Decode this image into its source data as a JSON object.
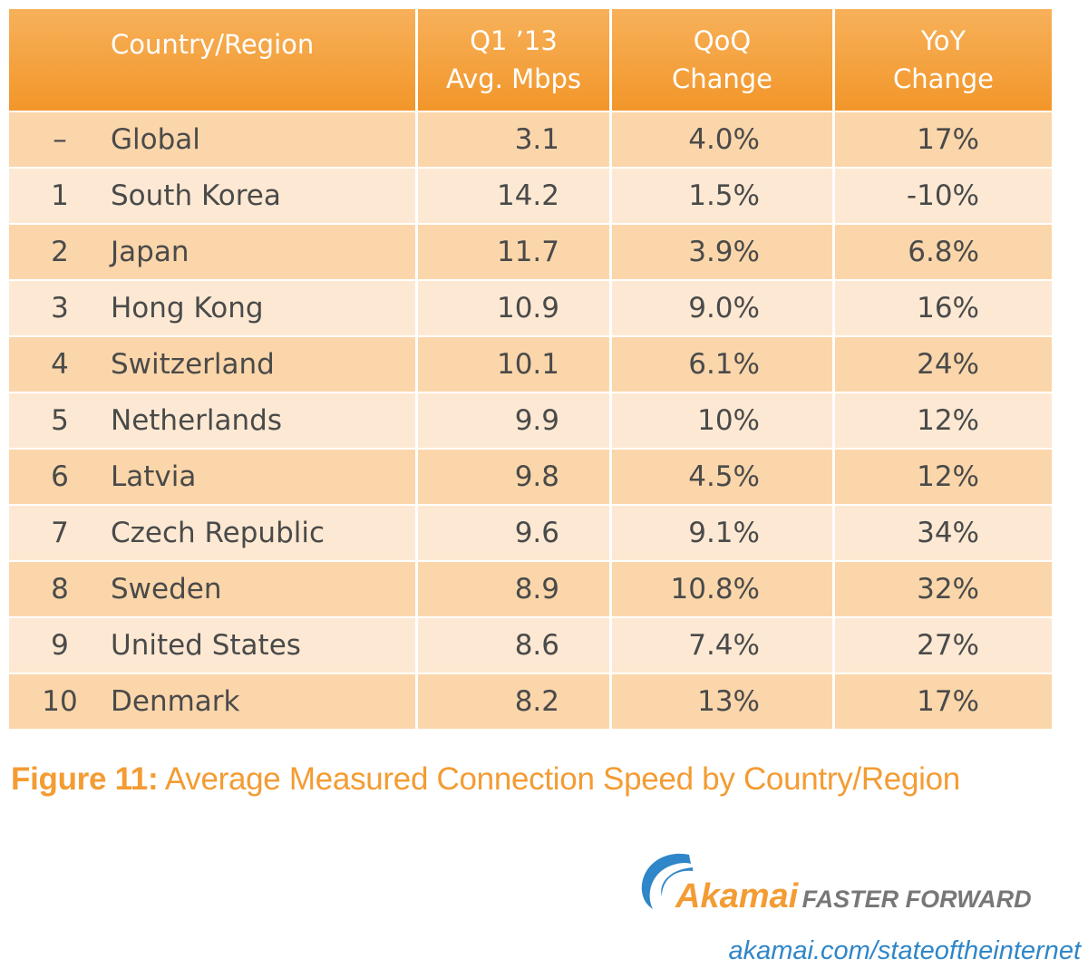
{
  "table": {
    "headers": [
      [
        "Country/Region"
      ],
      [
        "Q1 ’13",
        "Avg. Mbps"
      ],
      [
        "QoQ",
        "Change"
      ],
      [
        "YoY",
        "Change"
      ]
    ],
    "rows": [
      [
        "–",
        "Global",
        "3.1",
        "4.0%",
        "17%"
      ],
      [
        "1",
        "South Korea",
        "14.2",
        "1.5%",
        "-10%"
      ],
      [
        "2",
        "Japan",
        "11.7",
        "3.9%",
        "6.8%"
      ],
      [
        "3",
        "Hong Kong",
        "10.9",
        "9.0%",
        "16%"
      ],
      [
        "4",
        "Switzerland",
        "10.1",
        "6.1%",
        "24%"
      ],
      [
        "5",
        "Netherlands",
        "9.9",
        "10%",
        "12%"
      ],
      [
        "6",
        "Latvia",
        "9.8",
        "4.5%",
        "12%"
      ],
      [
        "7",
        "Czech Republic",
        "9.6",
        "9.1%",
        "34%"
      ],
      [
        "8",
        "Sweden",
        "8.9",
        "10.8%",
        "32%"
      ],
      [
        "9",
        "United States",
        "8.6",
        "7.4%",
        "27%"
      ],
      [
        "10",
        "Denmark",
        "8.2",
        "13%",
        "17%"
      ]
    ]
  },
  "caption": {
    "label": "Figure 11:",
    "text": "Average Measured Connection Speed by Country/Region"
  },
  "logo": {
    "brand": "Akamai",
    "tagline": "FASTER FORWARD",
    "url": "akamai.com/stateoftheinternet"
  }
}
